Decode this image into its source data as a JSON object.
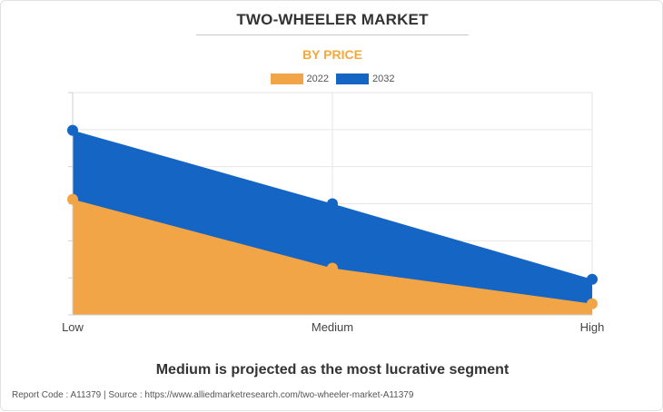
{
  "header": {
    "title": "TWO-WHEELER MARKET",
    "subtitle": "BY PRICE"
  },
  "colors": {
    "series_2022": "#f2a546",
    "series_2032": "#1565c4",
    "subtitle": "#f5a83a",
    "grid": "#e6e6e6"
  },
  "chart_data": {
    "type": "area",
    "categories": [
      "Low",
      "Medium",
      "High"
    ],
    "series": [
      {
        "name": "2022",
        "values": [
          52,
          21,
          5
        ]
      },
      {
        "name": "2032",
        "values": [
          83,
          50,
          16
        ]
      }
    ],
    "ylim": [
      0,
      100
    ],
    "grid": true,
    "legend_position": "top-center",
    "stacked": false
  },
  "caption": "Medium is projected as the most lucrative segment",
  "footer": "Report Code : A11379  |  Source : https://www.alliedmarketresearch.com/two-wheeler-market-A11379"
}
